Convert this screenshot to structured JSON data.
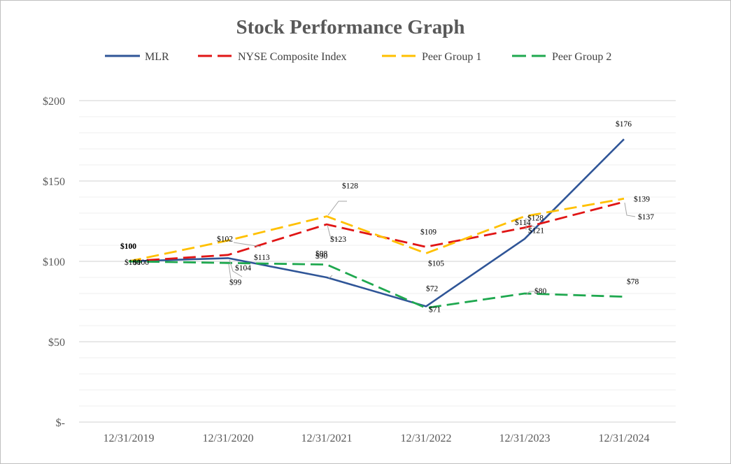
{
  "chart_data": {
    "type": "line",
    "title": "Stock Performance Graph",
    "xlabel": "",
    "ylabel": "",
    "ylim": [
      0,
      200
    ],
    "y_ticks": [
      {
        "value": 0,
        "label": "$-"
      },
      {
        "value": 50,
        "label": "$50"
      },
      {
        "value": 100,
        "label": "$100"
      },
      {
        "value": 150,
        "label": "$150"
      },
      {
        "value": 200,
        "label": "$200"
      }
    ],
    "minor_gridline_step": 10,
    "categories": [
      "12/31/2019",
      "12/31/2020",
      "12/31/2021",
      "12/31/2022",
      "12/31/2023",
      "12/31/2024"
    ],
    "legend_position": "top",
    "series": [
      {
        "name": "MLR",
        "color": "#2f5597",
        "style": "solid",
        "values": [
          100,
          102,
          90,
          72,
          114,
          176
        ],
        "labels": [
          "$100",
          "$102",
          "$90",
          "$72",
          "$114",
          "$176"
        ]
      },
      {
        "name": "NYSE Composite Index",
        "color": "#e01515",
        "style": "dashed",
        "values": [
          100,
          104,
          123,
          109,
          121,
          137
        ],
        "labels": [
          "$100",
          "$104",
          "$123",
          "$109",
          "$121",
          "$137"
        ]
      },
      {
        "name": "Peer Group 1",
        "color": "#ffc000",
        "style": "dashed",
        "values": [
          100,
          113,
          128,
          105,
          128,
          139
        ],
        "labels": [
          "$100",
          "$113",
          "$128",
          "$105",
          "$128",
          "$139"
        ]
      },
      {
        "name": "Peer Group 2",
        "color": "#1fa84f",
        "style": "dashed",
        "values": [
          100,
          99,
          98,
          71,
          80,
          78
        ],
        "labels": [
          "$100",
          "$99",
          "$98",
          "$71",
          "$80",
          "$78"
        ]
      }
    ]
  }
}
